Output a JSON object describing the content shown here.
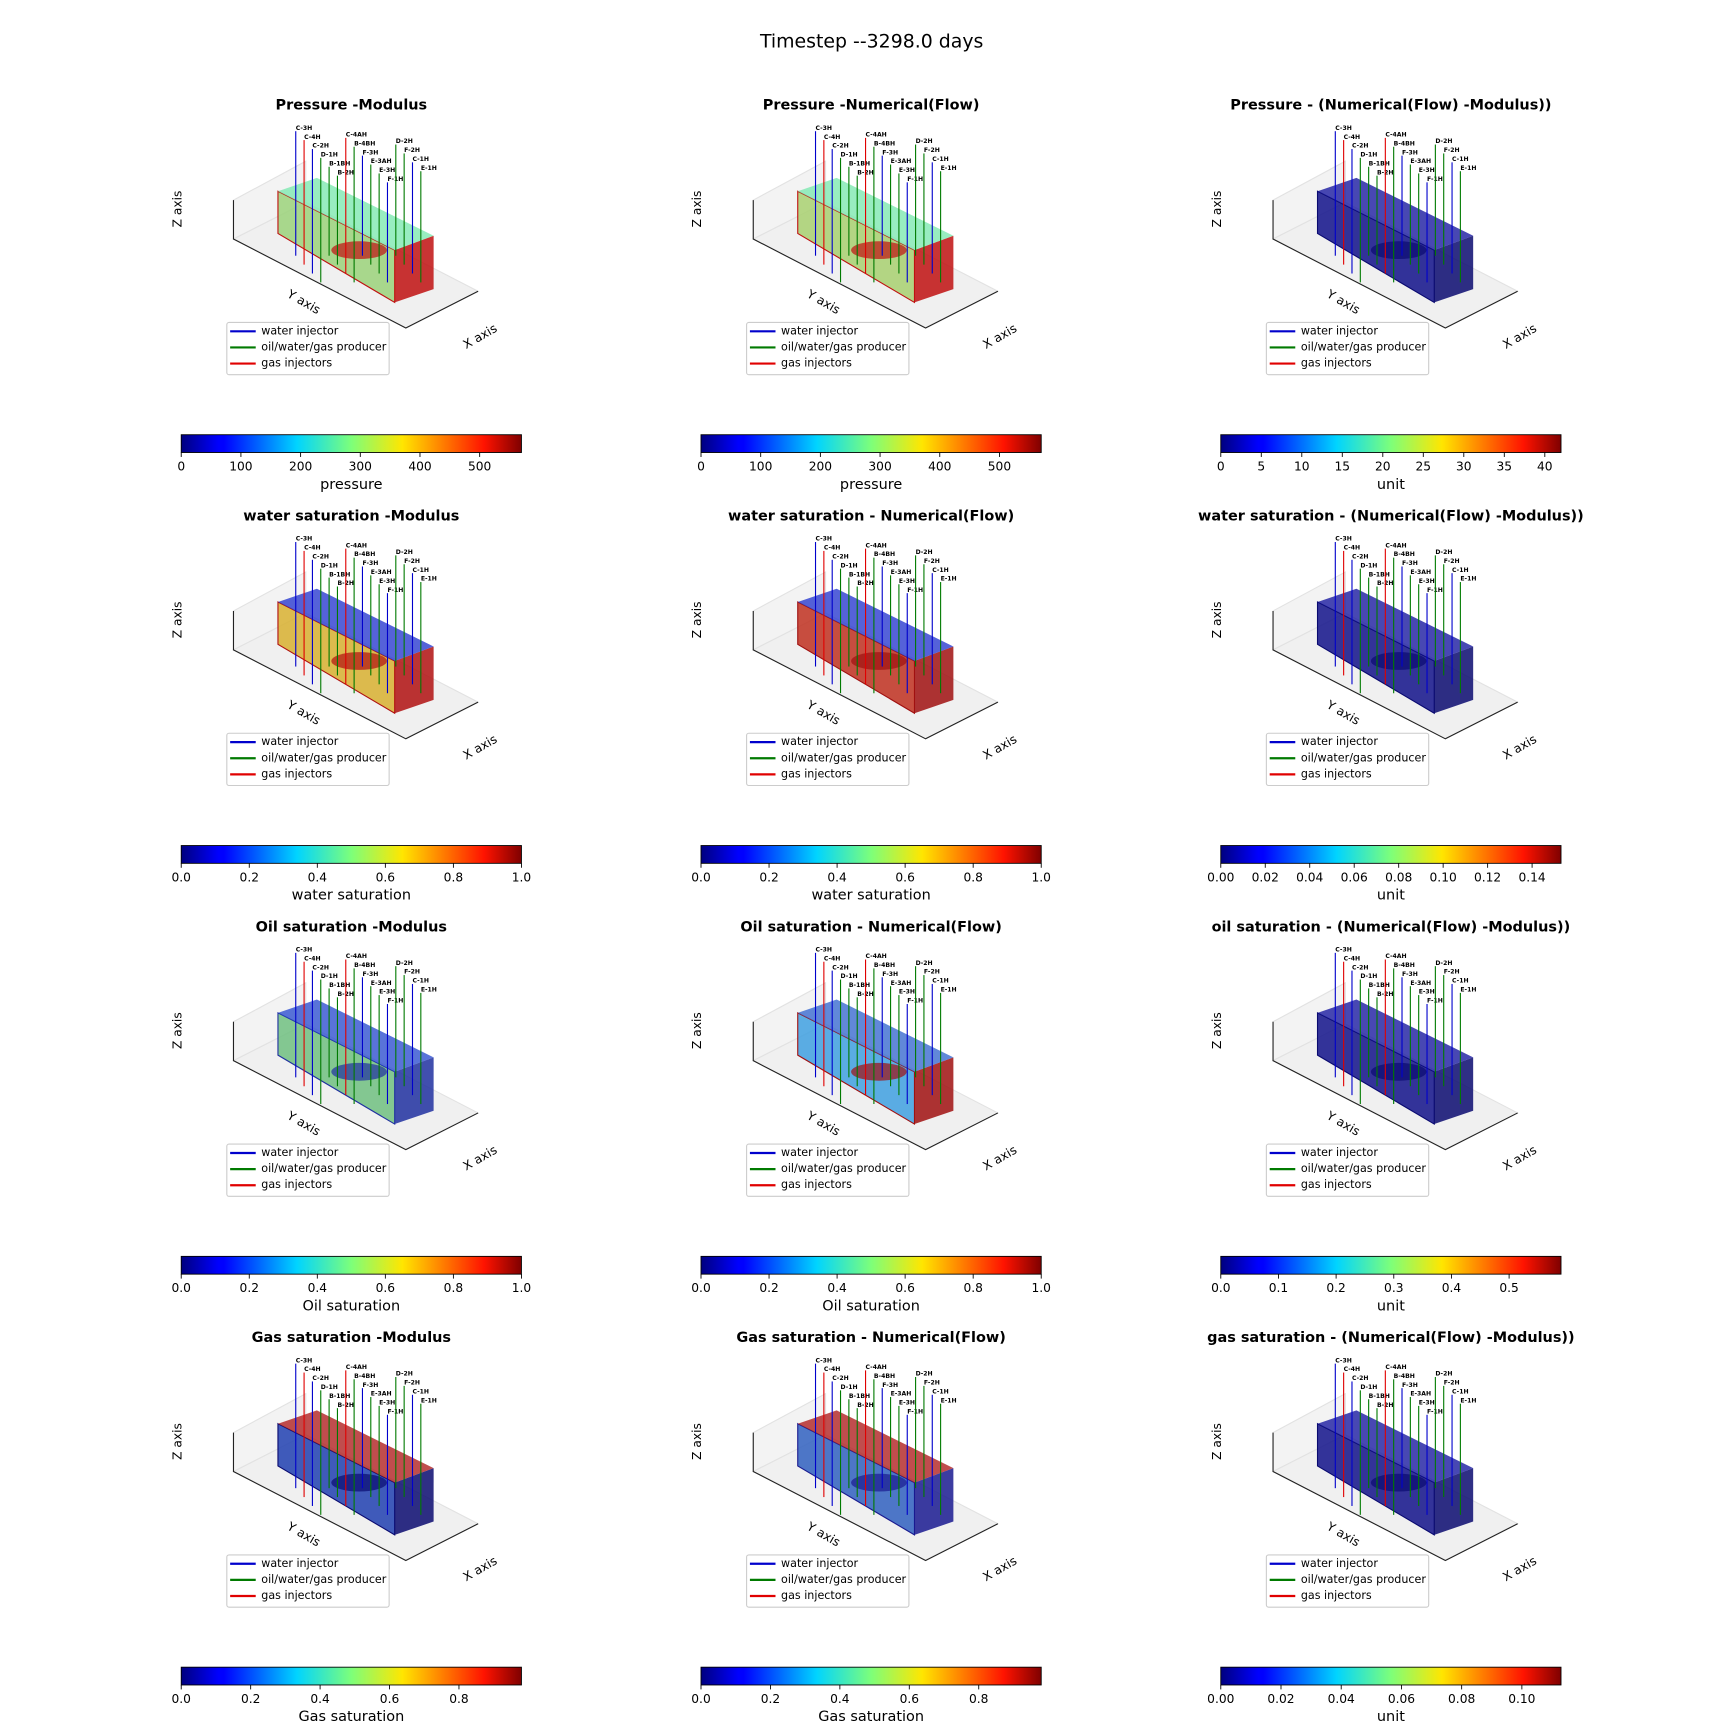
{
  "title": "Timestep --3298.0 days",
  "axis_labels": {
    "x": "X axis",
    "y": "Y axis",
    "z": "Z axis"
  },
  "legend": [
    {
      "name": "water injector",
      "color": "#0000cc"
    },
    {
      "name": "oil/water/gas producer",
      "color": "#007a00"
    },
    {
      "name": "gas injectors",
      "color": "#e00000"
    }
  ],
  "wells": [
    {
      "name": "C-3H",
      "color": "#0000cc"
    },
    {
      "name": "C-4H",
      "color": "#e00000"
    },
    {
      "name": "C-2H",
      "color": "#0000cc"
    },
    {
      "name": "D-1H",
      "color": "#007a00"
    },
    {
      "name": "B-1BH",
      "color": "#007a00"
    },
    {
      "name": "B-2H",
      "color": "#007a00"
    },
    {
      "name": "C-4AH",
      "color": "#e00000"
    },
    {
      "name": "B-4BH",
      "color": "#007a00"
    },
    {
      "name": "F-3H",
      "color": "#0000cc"
    },
    {
      "name": "E-3AH",
      "color": "#007a00"
    },
    {
      "name": "E-3H",
      "color": "#007a00"
    },
    {
      "name": "F-1H",
      "color": "#0000cc"
    },
    {
      "name": "D-2H",
      "color": "#007a00"
    },
    {
      "name": "F-2H",
      "color": "#007a00"
    },
    {
      "name": "C-1H",
      "color": "#0000cc"
    },
    {
      "name": "E-1H",
      "color": "#007a00"
    }
  ],
  "chart_data": [
    {
      "type": "volume3d",
      "title": "Pressure -Modulus",
      "volume_colors": [
        "#7ee8b0",
        "#9bd27a",
        "#c01010"
      ],
      "colorbar": {
        "label": "pressure",
        "colormap": "jet",
        "lim": [
          0,
          570
        ],
        "ticks": [
          0,
          100,
          200,
          300,
          400,
          500
        ]
      }
    },
    {
      "type": "volume3d",
      "title": "Pressure -Numerical(Flow)",
      "volume_colors": [
        "#7ee8b0",
        "#a8d070",
        "#c01010"
      ],
      "colorbar": {
        "label": "pressure",
        "colormap": "jet",
        "lim": [
          0,
          570
        ],
        "ticks": [
          0,
          100,
          200,
          300,
          400,
          500
        ]
      }
    },
    {
      "type": "volume3d",
      "title": "Pressure - (Numerical(Flow) -Modulus))",
      "volume_colors": [
        "#1a1aa0",
        "#10108a",
        "#0a0a70"
      ],
      "colorbar": {
        "label": "unit",
        "colormap": "jet",
        "lim": [
          0,
          42
        ],
        "ticks": [
          0,
          5,
          10,
          15,
          20,
          25,
          30,
          35,
          40
        ]
      }
    },
    {
      "type": "volume3d",
      "title": "water saturation -Modulus",
      "volume_colors": [
        "#2a3bd0",
        "#d8b030",
        "#b01010"
      ],
      "colorbar": {
        "label": "water saturation",
        "colormap": "jet",
        "lim": [
          0,
          1
        ],
        "ticks": [
          {
            "value": 0,
            "label": "0.0"
          },
          0.2,
          0.4,
          0.6,
          0.8,
          {
            "value": 1,
            "label": "1.0"
          }
        ]
      }
    },
    {
      "type": "volume3d",
      "title": "water saturation - Numerical(Flow)",
      "volume_colors": [
        "#2a3bd0",
        "#c03020",
        "#a01010"
      ],
      "colorbar": {
        "label": "water saturation",
        "colormap": "jet",
        "lim": [
          0,
          1
        ],
        "ticks": [
          {
            "value": 0,
            "label": "0.0"
          },
          0.2,
          0.4,
          0.6,
          0.8,
          {
            "value": 1,
            "label": "1.0"
          }
        ]
      }
    },
    {
      "type": "volume3d",
      "title": "water saturation - (Numerical(Flow) -Modulus))",
      "volume_colors": [
        "#1a1aa0",
        "#12128a",
        "#0a0a70"
      ],
      "colorbar": {
        "label": "unit",
        "colormap": "jet",
        "lim": [
          0,
          0.153
        ],
        "ticks": [
          {
            "value": 0,
            "label": "0.00"
          },
          0.02,
          0.04,
          0.06,
          0.08,
          {
            "value": 0.1,
            "label": "0.10"
          },
          0.12,
          0.14
        ]
      }
    },
    {
      "type": "volume3d",
      "title": "Oil saturation -Modulus",
      "volume_colors": [
        "#3050d0",
        "#70c080",
        "#2030a0"
      ],
      "colorbar": {
        "label": "Oil saturation",
        "colormap": "jet",
        "lim": [
          0,
          1
        ],
        "ticks": [
          {
            "value": 0,
            "label": "0.0"
          },
          0.2,
          0.4,
          0.6,
          0.8,
          {
            "value": 1,
            "label": "1.0"
          }
        ]
      }
    },
    {
      "type": "volume3d",
      "title": "Oil saturation - Numerical(Flow)",
      "volume_colors": [
        "#3a6ad0",
        "#40a0e0",
        "#a01010"
      ],
      "colorbar": {
        "label": "Oil saturation",
        "colormap": "jet",
        "lim": [
          0,
          1
        ],
        "ticks": [
          {
            "value": 0,
            "label": "0.0"
          },
          0.2,
          0.4,
          0.6,
          0.8,
          {
            "value": 1,
            "label": "1.0"
          }
        ]
      }
    },
    {
      "type": "volume3d",
      "title": "oil saturation - (Numerical(Flow) -Modulus))",
      "volume_colors": [
        "#1a1aa0",
        "#12128a",
        "#0a0a70"
      ],
      "colorbar": {
        "label": "unit",
        "colormap": "jet",
        "lim": [
          0,
          0.59
        ],
        "ticks": [
          {
            "value": 0,
            "label": "0.0"
          },
          0.1,
          0.2,
          0.3,
          0.4,
          0.5
        ]
      }
    },
    {
      "type": "volume3d",
      "title": "Gas saturation -Modulus",
      "volume_colors": [
        "#b02020",
        "#2040b0",
        "#0a0a70"
      ],
      "colorbar": {
        "label": "Gas saturation",
        "colormap": "jet",
        "lim": [
          0,
          0.98
        ],
        "ticks": [
          {
            "value": 0,
            "label": "0.0"
          },
          0.2,
          0.4,
          0.6,
          0.8
        ]
      }
    },
    {
      "type": "volume3d",
      "title": "Gas saturation - Numerical(Flow)",
      "volume_colors": [
        "#b02020",
        "#3060c0",
        "#1a1a90"
      ],
      "colorbar": {
        "label": "Gas saturation",
        "colormap": "jet",
        "lim": [
          0,
          0.98
        ],
        "ticks": [
          {
            "value": 0,
            "label": "0.0"
          },
          0.2,
          0.4,
          0.6,
          0.8
        ]
      }
    },
    {
      "type": "volume3d",
      "title": "gas saturation - (Numerical(Flow) -Modulus))",
      "volume_colors": [
        "#1a1aa0",
        "#12128a",
        "#0a0a70"
      ],
      "colorbar": {
        "label": "unit",
        "colormap": "jet",
        "lim": [
          0,
          0.113
        ],
        "ticks": [
          {
            "value": 0,
            "label": "0.00"
          },
          0.02,
          0.04,
          0.06,
          0.08,
          {
            "value": 0.1,
            "label": "0.10"
          }
        ]
      }
    }
  ]
}
